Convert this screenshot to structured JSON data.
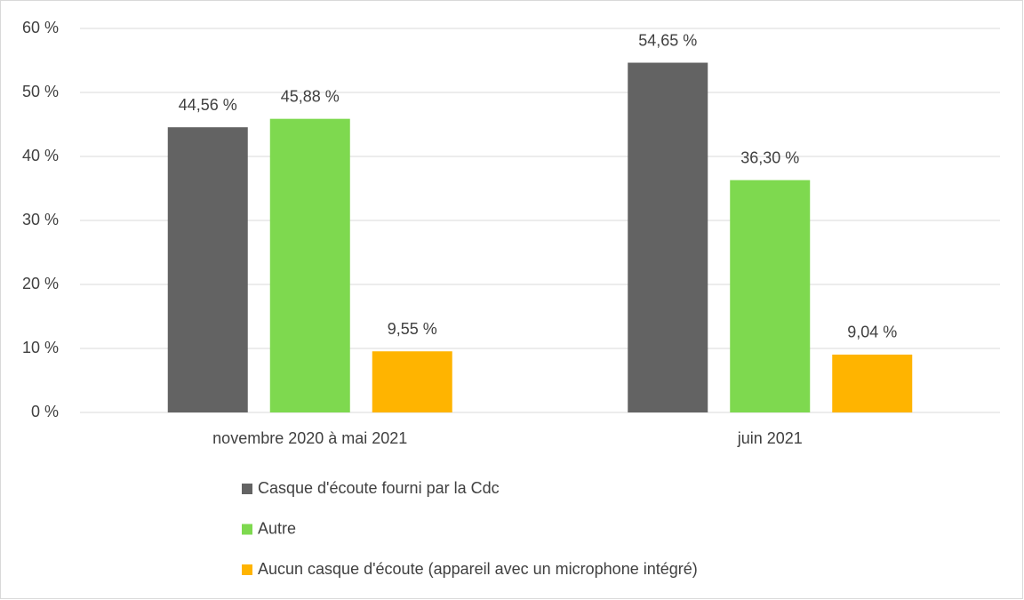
{
  "chart_data": {
    "type": "bar",
    "categories": [
      "novembre 2020 à mai 2021",
      "juin 2021"
    ],
    "series": [
      {
        "name": "Casque d'écoute fourni par la Cdc",
        "color": "#636363",
        "values": [
          44.56,
          54.65
        ],
        "value_labels": [
          "44,56 %",
          "54,65 %"
        ]
      },
      {
        "name": "Autre",
        "color": "#7ed94f",
        "values": [
          45.88,
          36.3
        ],
        "value_labels": [
          "45,88 %",
          "36,30 %"
        ]
      },
      {
        "name": "Aucun casque d'écoute (appareil avec un microphone intégré)",
        "color": "#ffb400",
        "values": [
          9.55,
          9.04
        ],
        "value_labels": [
          "9,55 %",
          "9,04 %"
        ]
      }
    ],
    "ylim": [
      0,
      60
    ],
    "yticks": [
      {
        "value": 0,
        "label": "0 %"
      },
      {
        "value": 10,
        "label": "10 %"
      },
      {
        "value": 20,
        "label": "20 %"
      },
      {
        "value": 30,
        "label": "30 %"
      },
      {
        "value": 40,
        "label": "40 %"
      },
      {
        "value": 50,
        "label": "50 %"
      },
      {
        "value": 60,
        "label": "60 %"
      }
    ],
    "grid": true,
    "legend": "bottom"
  }
}
